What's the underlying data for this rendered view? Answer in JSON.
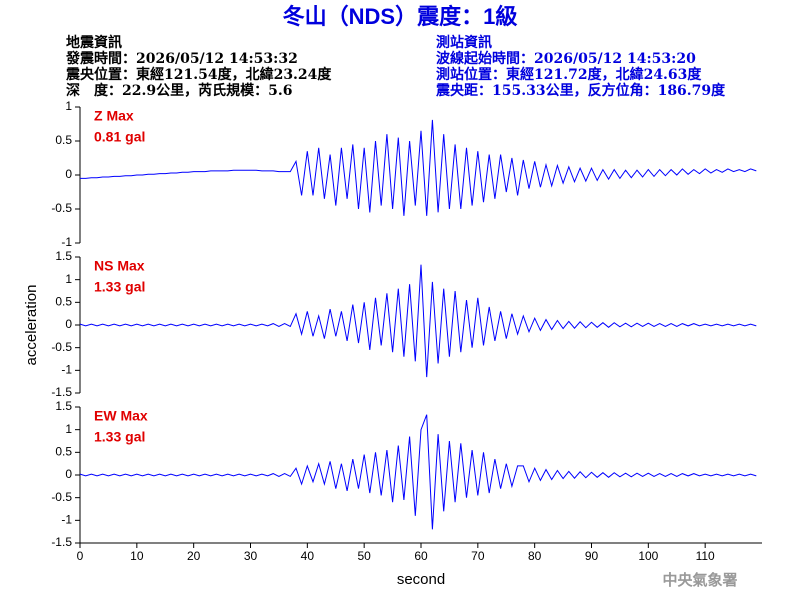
{
  "header": {
    "title": "冬山（NDS）震度：1級",
    "event_info": [
      "地震資訊",
      "發震時間：2026/05/12 14:53:32",
      "震央位置：東經121.54度，北緯23.24度",
      "深　度：22.9公里，芮氏規模：5.6"
    ],
    "station_info": [
      "測站資訊",
      "波線起始時間：2026/05/12 14:53:20",
      "測站位置：東經121.72度，北緯24.63度",
      "震央距：155.33公里，反方位角：186.79度"
    ]
  },
  "footer": {
    "credit": "中央氣象署"
  },
  "chart_data": [
    {
      "type": "line",
      "annotations": [
        "Z Max",
        "0.81 gal"
      ],
      "x": [
        0,
        1,
        2,
        3,
        4,
        5,
        6,
        7,
        8,
        9,
        10,
        11,
        12,
        13,
        14,
        15,
        16,
        17,
        18,
        19,
        20,
        21,
        22,
        23,
        24,
        25,
        26,
        27,
        28,
        29,
        30,
        31,
        32,
        33,
        34,
        35,
        36,
        37,
        38,
        39,
        40,
        41,
        42,
        43,
        44,
        45,
        46,
        47,
        48,
        49,
        50,
        51,
        52,
        53,
        54,
        55,
        56,
        57,
        58,
        59,
        60,
        61,
        62,
        63,
        64,
        65,
        66,
        67,
        68,
        69,
        70,
        71,
        72,
        73,
        74,
        75,
        76,
        77,
        78,
        79,
        80,
        81,
        82,
        83,
        84,
        85,
        86,
        87,
        88,
        89,
        90,
        91,
        92,
        93,
        94,
        95,
        96,
        97,
        98,
        99,
        100,
        101,
        102,
        103,
        104,
        105,
        106,
        107,
        108,
        109,
        110,
        111,
        112,
        113,
        114,
        115,
        116,
        117,
        118,
        119
      ],
      "series": [
        {
          "color": "#0000ff",
          "values": [
            -0.05,
            -0.05,
            -0.04,
            -0.04,
            -0.03,
            -0.03,
            -0.02,
            -0.02,
            -0.01,
            -0.01,
            0,
            0,
            0.01,
            0.01,
            0.02,
            0.02,
            0.03,
            0.03,
            0.04,
            0.04,
            0.05,
            0.05,
            0.05,
            0.06,
            0.06,
            0.06,
            0.06,
            0.07,
            0.07,
            0.07,
            0.07,
            0.07,
            0.06,
            0.06,
            0.06,
            0.05,
            0.05,
            0.05,
            0.2,
            -0.3,
            0.35,
            -0.3,
            0.4,
            -0.35,
            0.3,
            -0.45,
            0.4,
            -0.35,
            0.45,
            -0.5,
            0.4,
            -0.55,
            0.5,
            -0.45,
            0.6,
            -0.5,
            0.55,
            -0.6,
            0.5,
            -0.45,
            0.65,
            -0.6,
            0.81,
            -0.55,
            0.6,
            -0.5,
            0.45,
            -0.5,
            0.4,
            -0.45,
            0.35,
            -0.4,
            0.3,
            -0.35,
            0.3,
            -0.25,
            0.25,
            -0.3,
            0.22,
            -0.2,
            0.2,
            -0.18,
            0.15,
            -0.16,
            0.14,
            -0.12,
            0.12,
            -0.1,
            0.1,
            -0.09,
            0.1,
            -0.08,
            0.08,
            -0.06,
            0.08,
            -0.05,
            0.07,
            -0.04,
            0.07,
            -0.03,
            0.08,
            -0.02,
            0.08,
            -0.01,
            0.08,
            0,
            0.09,
            0.01,
            0.08,
            0.02,
            0.09,
            0.03,
            0.08,
            0.04,
            0.09,
            0.05,
            0.08,
            0.05,
            0.09,
            0.06
          ]
        }
      ],
      "xlim": [
        0,
        120
      ],
      "ylim": [
        -1,
        1
      ],
      "yticks": [
        -1,
        -0.5,
        0,
        0.5,
        1
      ]
    },
    {
      "type": "line",
      "annotations": [
        "NS Max",
        "1.33 gal"
      ],
      "ylabel": "acceleration",
      "x": [
        0,
        1,
        2,
        3,
        4,
        5,
        6,
        7,
        8,
        9,
        10,
        11,
        12,
        13,
        14,
        15,
        16,
        17,
        18,
        19,
        20,
        21,
        22,
        23,
        24,
        25,
        26,
        27,
        28,
        29,
        30,
        31,
        32,
        33,
        34,
        35,
        36,
        37,
        38,
        39,
        40,
        41,
        42,
        43,
        44,
        45,
        46,
        47,
        48,
        49,
        50,
        51,
        52,
        53,
        54,
        55,
        56,
        57,
        58,
        59,
        60,
        61,
        62,
        63,
        64,
        65,
        66,
        67,
        68,
        69,
        70,
        71,
        72,
        73,
        74,
        75,
        76,
        77,
        78,
        79,
        80,
        81,
        82,
        83,
        84,
        85,
        86,
        87,
        88,
        89,
        90,
        91,
        92,
        93,
        94,
        95,
        96,
        97,
        98,
        99,
        100,
        101,
        102,
        103,
        104,
        105,
        106,
        107,
        108,
        109,
        110,
        111,
        112,
        113,
        114,
        115,
        116,
        117,
        118,
        119
      ],
      "series": [
        {
          "color": "#0000ff",
          "values": [
            0.02,
            -0.02,
            0.02,
            -0.02,
            0.02,
            -0.02,
            0.02,
            -0.02,
            0.02,
            -0.02,
            0.02,
            -0.02,
            0.02,
            -0.02,
            0.02,
            -0.02,
            0.02,
            -0.02,
            0.02,
            -0.02,
            0.02,
            -0.02,
            0.02,
            -0.02,
            0.02,
            -0.02,
            0.02,
            -0.02,
            0.02,
            -0.02,
            0.02,
            -0.02,
            0.02,
            -0.02,
            0.03,
            -0.03,
            0.03,
            -0.03,
            0.25,
            -0.2,
            0.3,
            -0.25,
            0.2,
            -0.3,
            0.35,
            -0.25,
            0.3,
            -0.35,
            0.45,
            -0.4,
            0.5,
            -0.55,
            0.6,
            -0.45,
            0.7,
            -0.6,
            0.8,
            -0.7,
            0.9,
            -0.8,
            1.33,
            -1.15,
            0.95,
            -0.85,
            0.8,
            -0.7,
            0.75,
            -0.6,
            0.55,
            -0.5,
            0.6,
            -0.45,
            0.4,
            -0.35,
            0.3,
            -0.3,
            0.25,
            -0.2,
            0.2,
            -0.15,
            0.15,
            -0.12,
            0.12,
            -0.1,
            0.1,
            -0.08,
            0.08,
            -0.07,
            0.07,
            -0.06,
            0.06,
            -0.05,
            0.05,
            -0.05,
            0.05,
            -0.04,
            0.04,
            -0.04,
            0.04,
            -0.03,
            0.04,
            -0.03,
            0.03,
            -0.03,
            0.03,
            -0.03,
            0.03,
            -0.02,
            0.03,
            -0.02,
            0.02,
            -0.02,
            0.02,
            -0.02,
            0.02,
            -0.02,
            0.02,
            -0.02,
            0.02,
            -0.02
          ]
        }
      ],
      "xlim": [
        0,
        120
      ],
      "ylim": [
        -1.5,
        1.5
      ],
      "yticks": [
        -1.5,
        -1,
        -0.5,
        0,
        0.5,
        1,
        1.5
      ]
    },
    {
      "type": "line",
      "annotations": [
        "EW Max",
        "1.33 gal"
      ],
      "xlabel": "second",
      "x": [
        0,
        1,
        2,
        3,
        4,
        5,
        6,
        7,
        8,
        9,
        10,
        11,
        12,
        13,
        14,
        15,
        16,
        17,
        18,
        19,
        20,
        21,
        22,
        23,
        24,
        25,
        26,
        27,
        28,
        29,
        30,
        31,
        32,
        33,
        34,
        35,
        36,
        37,
        38,
        39,
        40,
        41,
        42,
        43,
        44,
        45,
        46,
        47,
        48,
        49,
        50,
        51,
        52,
        53,
        54,
        55,
        56,
        57,
        58,
        59,
        60,
        61,
        62,
        63,
        64,
        65,
        66,
        67,
        68,
        69,
        70,
        71,
        72,
        73,
        74,
        75,
        76,
        77,
        78,
        79,
        80,
        81,
        82,
        83,
        84,
        85,
        86,
        87,
        88,
        89,
        90,
        91,
        92,
        93,
        94,
        95,
        96,
        97,
        98,
        99,
        100,
        101,
        102,
        103,
        104,
        105,
        106,
        107,
        108,
        109,
        110,
        111,
        112,
        113,
        114,
        115,
        116,
        117,
        118,
        119
      ],
      "series": [
        {
          "color": "#0000ff",
          "values": [
            0.02,
            -0.02,
            0.02,
            -0.02,
            0.02,
            -0.02,
            0.02,
            -0.02,
            0.02,
            -0.02,
            0.02,
            -0.02,
            0.02,
            -0.02,
            0.02,
            -0.02,
            0.02,
            -0.02,
            0.02,
            -0.02,
            0.02,
            -0.02,
            0.02,
            -0.02,
            0.02,
            -0.02,
            0.02,
            -0.02,
            0.02,
            -0.02,
            0.02,
            -0.02,
            0.02,
            -0.02,
            0.03,
            -0.03,
            0.03,
            -0.03,
            0.15,
            -0.2,
            0.2,
            -0.15,
            0.25,
            -0.2,
            0.3,
            -0.3,
            0.25,
            -0.35,
            0.35,
            -0.3,
            0.45,
            -0.4,
            0.5,
            -0.45,
            0.55,
            -0.6,
            0.65,
            -0.55,
            0.85,
            -0.9,
            1.0,
            1.33,
            -1.2,
            0.9,
            -0.8,
            0.75,
            -0.6,
            0.7,
            -0.5,
            0.55,
            -0.45,
            0.5,
            -0.4,
            0.35,
            -0.3,
            0.25,
            -0.25,
            0.2,
            0.2,
            -0.15,
            0.15,
            -0.12,
            0.12,
            -0.1,
            0.1,
            -0.08,
            0.08,
            -0.07,
            0.07,
            -0.06,
            0.06,
            -0.05,
            0.05,
            -0.05,
            0.05,
            -0.04,
            0.04,
            -0.04,
            0.04,
            -0.03,
            0.04,
            -0.03,
            0.03,
            -0.03,
            0.03,
            -0.03,
            0.03,
            -0.02,
            0.03,
            -0.02,
            0.02,
            -0.02,
            0.02,
            -0.02,
            0.02,
            -0.02,
            0.02,
            -0.02,
            0.02,
            -0.02
          ]
        }
      ],
      "xlim": [
        0,
        120
      ],
      "ylim": [
        -1.5,
        1.5
      ],
      "yticks": [
        -1.5,
        -1,
        -0.5,
        0,
        0.5,
        1,
        1.5
      ],
      "xticks": [
        0,
        10,
        20,
        30,
        40,
        50,
        60,
        70,
        80,
        90,
        100,
        110
      ]
    }
  ]
}
